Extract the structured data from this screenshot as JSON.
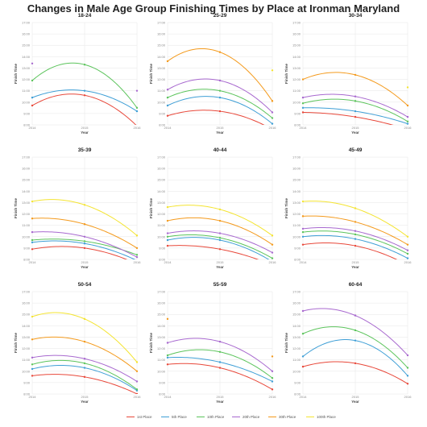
{
  "title": "Changes in Male Age Group Finishing Times by Place at Ironman Maryland",
  "chart_data": [
    {
      "type": "line",
      "title": "18-24",
      "xlabel": "Year",
      "ylabel": "Finish Time",
      "x": [
        "2014",
        "2015",
        "2016"
      ],
      "ylim": [
        8,
        17
      ],
      "yticks": [
        "8:00",
        "9:00",
        "10:00",
        "11:00",
        "12:00",
        "13:00",
        "14:00",
        "15:00",
        "16:00",
        "17:00"
      ],
      "series": [
        {
          "name": "1st Place",
          "values": [
            9.7,
            10.6,
            7.9
          ]
        },
        {
          "name": "5th Place",
          "values": [
            10.4,
            11.0,
            9.2
          ]
        },
        {
          "name": "10th Place",
          "values": [
            11.9,
            13.3,
            9.5
          ]
        },
        {
          "name": "20th Place",
          "values": [
            13.4,
            null,
            11.0
          ]
        }
      ]
    },
    {
      "type": "line",
      "title": "25-29",
      "xlabel": "Year",
      "ylabel": "Finish Time",
      "x": [
        "2014",
        "2015",
        "2016"
      ],
      "ylim": [
        8,
        17
      ],
      "yticks": [
        "8:00",
        "9:00",
        "10:00",
        "11:00",
        "12:00",
        "13:00",
        "14:00",
        "15:00",
        "16:00",
        "17:00"
      ],
      "series": [
        {
          "name": "1st Place",
          "values": [
            8.8,
            9.2,
            7.6
          ]
        },
        {
          "name": "5th Place",
          "values": [
            9.7,
            10.4,
            8.1
          ]
        },
        {
          "name": "10th Place",
          "values": [
            10.4,
            11.0,
            8.6
          ]
        },
        {
          "name": "20th Place",
          "values": [
            11.1,
            11.9,
            9.1
          ]
        },
        {
          "name": "30th Place",
          "values": [
            13.6,
            14.4,
            10.1
          ]
        },
        {
          "name": "100th Place",
          "values": [
            null,
            null,
            12.8
          ]
        }
      ]
    },
    {
      "type": "line",
      "title": "30-34",
      "xlabel": "Year",
      "ylabel": "Finish Time",
      "x": [
        "2014",
        "2015",
        "2016"
      ],
      "ylim": [
        8,
        17
      ],
      "yticks": [
        "8:00",
        "9:00",
        "10:00",
        "11:00",
        "12:00",
        "13:00",
        "14:00",
        "15:00",
        "16:00",
        "17:00"
      ],
      "series": [
        {
          "name": "1st Place",
          "values": [
            9.1,
            8.7,
            7.6
          ]
        },
        {
          "name": "5th Place",
          "values": [
            9.5,
            9.2,
            8.1
          ]
        },
        {
          "name": "10th Place",
          "values": [
            9.9,
            10.1,
            8.3
          ]
        },
        {
          "name": "20th Place",
          "values": [
            10.4,
            10.5,
            8.7
          ]
        },
        {
          "name": "30th Place",
          "values": [
            12.0,
            12.4,
            9.7
          ]
        },
        {
          "name": "100th Place",
          "values": [
            null,
            null,
            11.3
          ]
        }
      ]
    },
    {
      "type": "line",
      "title": "35-39",
      "xlabel": "Year",
      "ylabel": "Finish Time",
      "x": [
        "2014",
        "2015",
        "2016"
      ],
      "ylim": [
        8,
        17
      ],
      "yticks": [
        "8:00",
        "9:00",
        "10:00",
        "11:00",
        "12:00",
        "13:00",
        "14:00",
        "15:00",
        "16:00",
        "17:00"
      ],
      "series": [
        {
          "name": "1st Place",
          "values": [
            8.9,
            9.0,
            7.6
          ]
        },
        {
          "name": "5th Place",
          "values": [
            9.5,
            9.4,
            7.9
          ]
        },
        {
          "name": "10th Place",
          "values": [
            9.7,
            9.6,
            8.4
          ]
        },
        {
          "name": "20th Place",
          "values": [
            10.4,
            10.0,
            8.2
          ]
        },
        {
          "name": "30th Place",
          "values": [
            11.6,
            11.1,
            9.0
          ]
        },
        {
          "name": "100th Place",
          "values": [
            13.1,
            12.8,
            10.1
          ]
        }
      ]
    },
    {
      "type": "line",
      "title": "40-44",
      "xlabel": "Year",
      "ylabel": "Finish Time",
      "x": [
        "2014",
        "2015",
        "2016"
      ],
      "ylim": [
        8,
        17
      ],
      "yticks": [
        "8:00",
        "9:00",
        "10:00",
        "11:00",
        "12:00",
        "13:00",
        "14:00",
        "15:00",
        "16:00",
        "17:00"
      ],
      "series": [
        {
          "name": "1st Place",
          "values": [
            9.2,
            8.9,
            7.5
          ]
        },
        {
          "name": "5th Place",
          "values": [
            9.7,
            9.7,
            7.8
          ]
        },
        {
          "name": "10th Place",
          "values": [
            10.0,
            9.9,
            8.1
          ]
        },
        {
          "name": "20th Place",
          "values": [
            10.3,
            10.3,
            8.6
          ]
        },
        {
          "name": "30th Place",
          "values": [
            11.4,
            11.4,
            9.3
          ]
        },
        {
          "name": "100th Place",
          "values": [
            12.6,
            12.4,
            10.1
          ]
        }
      ]
    },
    {
      "type": "line",
      "title": "45-49",
      "xlabel": "Year",
      "ylabel": "Finish Time",
      "x": [
        "2014",
        "2015",
        "2016"
      ],
      "ylim": [
        8,
        17
      ],
      "yticks": [
        "8:00",
        "9:00",
        "10:00",
        "11:00",
        "12:00",
        "13:00",
        "14:00",
        "15:00",
        "16:00",
        "17:00"
      ],
      "series": [
        {
          "name": "1st Place",
          "values": [
            9.3,
            9.2,
            7.5
          ]
        },
        {
          "name": "5th Place",
          "values": [
            10.0,
            9.8,
            8.1
          ]
        },
        {
          "name": "10th Place",
          "values": [
            10.4,
            10.2,
            8.5
          ]
        },
        {
          "name": "20th Place",
          "values": [
            10.7,
            10.5,
            8.8
          ]
        },
        {
          "name": "30th Place",
          "values": [
            11.8,
            11.3,
            9.3
          ]
        },
        {
          "name": "100th Place",
          "values": [
            13.1,
            12.5,
            10.0
          ]
        }
      ]
    },
    {
      "type": "line",
      "title": "50-54",
      "xlabel": "Year",
      "ylabel": "Finish Time",
      "x": [
        "2014",
        "2015",
        "2016"
      ],
      "ylim": [
        8,
        17
      ],
      "yticks": [
        "8:00",
        "9:00",
        "10:00",
        "11:00",
        "12:00",
        "13:00",
        "14:00",
        "15:00",
        "16:00",
        "17:00"
      ],
      "series": [
        {
          "name": "1st Place",
          "values": [
            9.6,
            9.5,
            8.0
          ]
        },
        {
          "name": "5th Place",
          "values": [
            10.2,
            10.3,
            8.3
          ]
        },
        {
          "name": "10th Place",
          "values": [
            10.6,
            10.7,
            8.4
          ]
        },
        {
          "name": "20th Place",
          "values": [
            11.2,
            11.1,
            9.1
          ]
        },
        {
          "name": "30th Place",
          "values": [
            12.8,
            12.6,
            10.0
          ]
        },
        {
          "name": "100th Place",
          "values": [
            14.8,
            14.6,
            10.8
          ]
        }
      ]
    },
    {
      "type": "line",
      "title": "55-59",
      "xlabel": "Year",
      "ylabel": "Finish Time",
      "x": [
        "2014",
        "2015",
        "2016"
      ],
      "ylim": [
        8,
        17
      ],
      "yticks": [
        "8:00",
        "9:00",
        "10:00",
        "11:00",
        "12:00",
        "13:00",
        "14:00",
        "15:00",
        "16:00",
        "17:00"
      ],
      "series": [
        {
          "name": "1st Place",
          "values": [
            10.6,
            10.3,
            8.4
          ]
        },
        {
          "name": "5th Place",
          "values": [
            11.2,
            10.8,
            9.1
          ]
        },
        {
          "name": "10th Place",
          "values": [
            11.4,
            11.7,
            9.4
          ]
        },
        {
          "name": "20th Place",
          "values": [
            12.5,
            12.6,
            10.0
          ]
        },
        {
          "name": "30th Place",
          "values": [
            14.6,
            null,
            11.3
          ]
        }
      ]
    },
    {
      "type": "line",
      "title": "60-64",
      "xlabel": "Year",
      "ylabel": "Finish Time",
      "x": [
        "2014",
        "2015",
        "2016"
      ],
      "ylim": [
        8,
        17
      ],
      "yticks": [
        "8:00",
        "9:00",
        "10:00",
        "11:00",
        "12:00",
        "13:00",
        "14:00",
        "15:00",
        "16:00",
        "17:00"
      ],
      "series": [
        {
          "name": "1st Place",
          "values": [
            10.4,
            10.7,
            8.9
          ]
        },
        {
          "name": "5th Place",
          "values": [
            11.3,
            12.7,
            9.6
          ]
        },
        {
          "name": "10th Place",
          "values": [
            13.3,
            13.6,
            10.3
          ]
        },
        {
          "name": "20th Place",
          "values": [
            15.3,
            14.9,
            11.4
          ]
        }
      ]
    }
  ],
  "legend": [
    {
      "name": "1st Place",
      "color": "#e8483a"
    },
    {
      "name": "5th Place",
      "color": "#3f9fd6"
    },
    {
      "name": "10th Place",
      "color": "#5cc45c"
    },
    {
      "name": "20th Place",
      "color": "#a869cf"
    },
    {
      "name": "30th Place",
      "color": "#f49a1c"
    },
    {
      "name": "100th Place",
      "color": "#f4e431"
    }
  ]
}
